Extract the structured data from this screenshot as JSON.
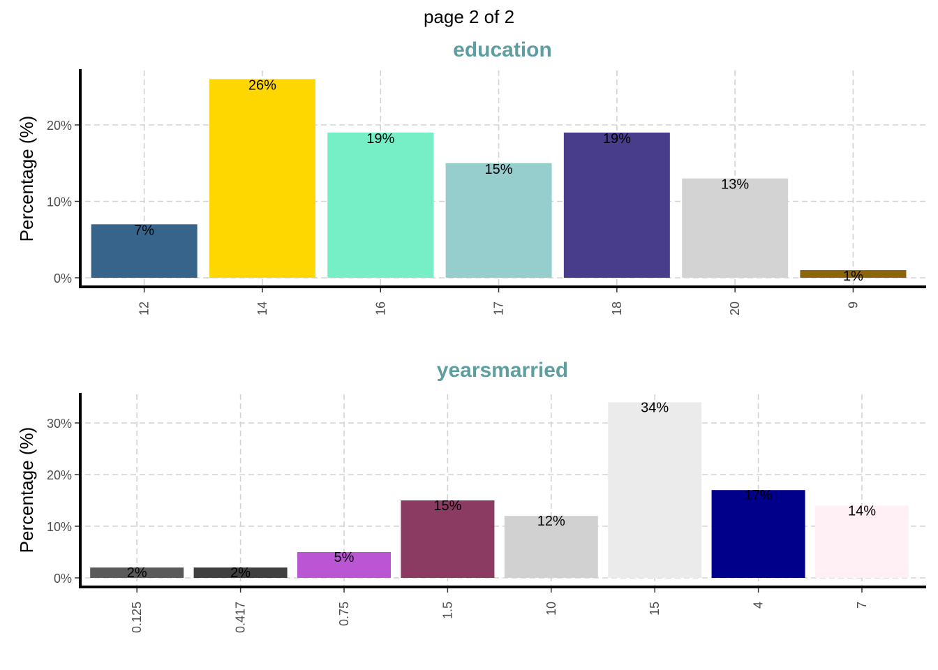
{
  "page_title": "page 2 of 2",
  "colors": {
    "panel_title": "#5f9ea0",
    "grid": "#d3d3d3",
    "axis": "#000000"
  },
  "chart_data": [
    {
      "type": "bar",
      "title": "education",
      "xlabel": "",
      "ylabel": "Percentage (%)",
      "categories": [
        "12",
        "14",
        "16",
        "17",
        "18",
        "20",
        "9"
      ],
      "values": [
        7,
        26,
        19,
        15,
        19,
        13,
        1
      ],
      "labels": [
        "7%",
        "26%",
        "19%",
        "15%",
        "19%",
        "13%",
        "1%"
      ],
      "colors": [
        "#36648b",
        "#ffd700",
        "#76eec6",
        "#96cdcd",
        "#483d8b",
        "#d3d3d3",
        "#8b6508"
      ],
      "yticks": [
        0,
        10,
        20
      ],
      "ytick_labels": [
        "0%",
        "10%",
        "20%"
      ],
      "ylim": [
        0,
        26
      ],
      "grid": true,
      "legend": "none"
    },
    {
      "type": "bar",
      "title": "yearsmarried",
      "xlabel": "",
      "ylabel": "Percentage (%)",
      "categories": [
        "0.125",
        "0.417",
        "0.75",
        "1.5",
        "10",
        "15",
        "4",
        "7"
      ],
      "values": [
        2,
        2,
        5,
        15,
        12,
        34,
        17,
        14
      ],
      "labels": [
        "2%",
        "2%",
        "5%",
        "15%",
        "12%",
        "34%",
        "17%",
        "14%"
      ],
      "colors": [
        "#5a5a5a",
        "#404040",
        "#ba55d3",
        "#8b3a62",
        "#d1d1d1",
        "#ebebeb",
        "#00008b",
        "#fff0f5"
      ],
      "yticks": [
        0,
        10,
        20,
        30
      ],
      "ytick_labels": [
        "0%",
        "10%",
        "20%",
        "30%"
      ],
      "ylim": [
        0,
        34
      ],
      "grid": true,
      "legend": "none"
    }
  ]
}
